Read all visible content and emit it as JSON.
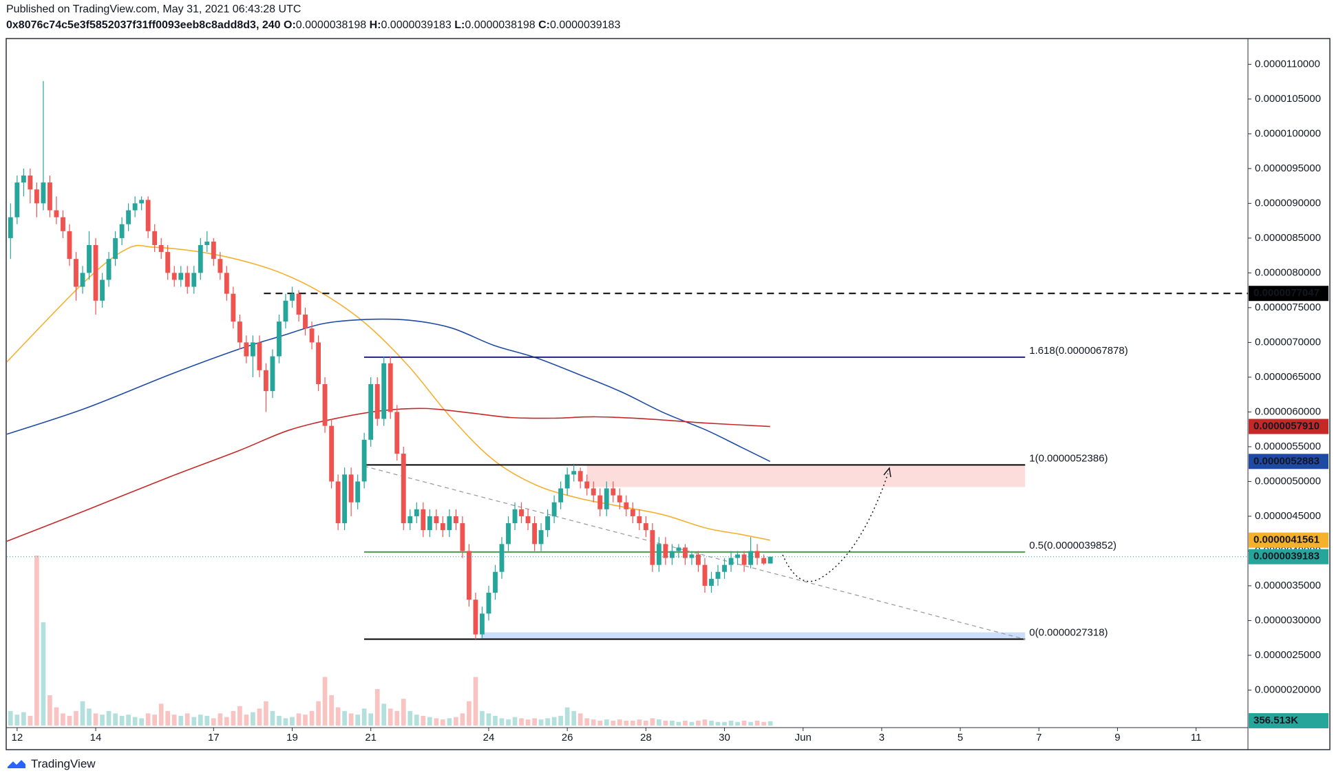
{
  "header": {
    "published": "Published on TradingView.com, May 31, 2021 06:43:28 UTC",
    "symbol": "0x8076c74c5e3f5852037f31ff0093eeb8c8add8d3, 240",
    "fields": [
      {
        "label": "O:",
        "value": "0.0000038198"
      },
      {
        "label": "H:",
        "value": "0.0000039183"
      },
      {
        "label": "L:",
        "value": "0.0000038198"
      },
      {
        "label": "C:",
        "value": "0.0000039183"
      }
    ]
  },
  "footer": {
    "brand": "TradingView"
  },
  "chart_data": {
    "type": "candlestick",
    "xlim": [
      11.74,
      43.32
    ],
    "ylim": [
      1.46e-06,
      1.137e-05
    ],
    "xticks": [
      12,
      14,
      17,
      19,
      21,
      24,
      26,
      28,
      30,
      {
        "value": 32,
        "label": "Jun"
      },
      {
        "value": 34,
        "label": "3"
      },
      {
        "value": 36,
        "label": "5"
      },
      {
        "value": 38,
        "label": "7"
      },
      {
        "value": 40,
        "label": "9"
      },
      {
        "value": 42,
        "label": "11"
      }
    ],
    "yticks": [
      {
        "value": 2e-06,
        "label": "0.0000020000"
      },
      {
        "value": 2.5e-06,
        "label": "0.0000025000"
      },
      {
        "value": 3e-06,
        "label": "0.0000030000"
      },
      {
        "value": 3.5e-06,
        "label": "0.0000035000"
      },
      {
        "value": 4e-06,
        "label": "0.0000040000"
      },
      {
        "value": 4.5e-06,
        "label": "0.0000045000"
      },
      {
        "value": 5e-06,
        "label": "0.0000050000"
      },
      {
        "value": 5.5e-06,
        "label": "0.0000055000"
      },
      {
        "value": 6e-06,
        "label": "0.0000060000"
      },
      {
        "value": 6.5e-06,
        "label": "0.0000065000"
      },
      {
        "value": 7e-06,
        "label": "0.0000070000"
      },
      {
        "value": 7.5e-06,
        "label": "0.0000075000"
      },
      {
        "value": 8e-06,
        "label": "0.0000080000"
      },
      {
        "value": 8.5e-06,
        "label": "0.0000085000"
      },
      {
        "value": 9e-06,
        "label": "0.0000090000"
      },
      {
        "value": 9.5e-06,
        "label": "0.0000095000"
      },
      {
        "value": 1e-05,
        "label": "0.0000100000"
      },
      {
        "value": 1.05e-05,
        "label": "0.0000105000"
      },
      {
        "value": 1.1e-05,
        "label": "0.0000110000"
      }
    ],
    "candle_colors": {
      "up": "#26a69a",
      "down": "#ef5350"
    },
    "x": [
      11.833,
      12,
      12.167,
      12.333,
      12.5,
      12.667,
      12.833,
      13,
      13.167,
      13.333,
      13.5,
      13.667,
      13.833,
      14,
      14.167,
      14.333,
      14.5,
      14.667,
      14.833,
      15,
      15.167,
      15.333,
      15.5,
      15.667,
      15.833,
      16,
      16.167,
      16.333,
      16.5,
      16.667,
      16.833,
      17,
      17.167,
      17.333,
      17.5,
      17.667,
      17.833,
      18,
      18.167,
      18.333,
      18.5,
      18.667,
      18.833,
      19,
      19.167,
      19.333,
      19.5,
      19.667,
      19.833,
      20,
      20.167,
      20.333,
      20.5,
      20.667,
      20.833,
      21,
      21.167,
      21.333,
      21.5,
      21.667,
      21.833,
      22,
      22.167,
      22.333,
      22.5,
      22.667,
      22.833,
      23,
      23.167,
      23.333,
      23.5,
      23.667,
      23.833,
      24,
      24.167,
      24.333,
      24.5,
      24.667,
      24.833,
      25,
      25.167,
      25.333,
      25.5,
      25.667,
      25.833,
      26,
      26.167,
      26.333,
      26.5,
      26.667,
      26.833,
      27,
      27.167,
      27.333,
      27.5,
      27.667,
      27.833,
      28,
      28.167,
      28.333,
      28.5,
      28.667,
      28.833,
      29,
      29.167,
      29.333,
      29.5,
      29.667,
      29.833,
      30,
      30.167,
      30.333,
      30.5,
      30.667,
      30.833,
      31,
      31.167
    ],
    "ohlc": [
      [
        8.5e-06,
        9e-06,
        8.2e-06,
        8.8e-06
      ],
      [
        8.8e-06,
        9.4e-06,
        8.7e-06,
        9.3e-06
      ],
      [
        9.3e-06,
        9.5e-06,
        9.1e-06,
        9.4e-06
      ],
      [
        9.4e-06,
        9.5e-06,
        9e-06,
        9.2e-06
      ],
      [
        9.2e-06,
        9.3e-06,
        8.8e-06,
        9e-06
      ],
      [
        9e-06,
        1.076e-05,
        8.9e-06,
        9.3e-06
      ],
      [
        9.3e-06,
        9.4e-06,
        8.8e-06,
        8.9e-06
      ],
      [
        8.9e-06,
        9.1e-06,
        8.7e-06,
        8.8e-06
      ],
      [
        8.8e-06,
        8.9e-06,
        8.5e-06,
        8.6e-06
      ],
      [
        8.6e-06,
        8.7e-06,
        8.1e-06,
        8.2e-06
      ],
      [
        8.2e-06,
        8.3e-06,
        7.6e-06,
        7.8e-06
      ],
      [
        7.8e-06,
        8.1e-06,
        7.7e-06,
        8e-06
      ],
      [
        8e-06,
        8.6e-06,
        7.9e-06,
        8.4e-06
      ],
      [
        8.4e-06,
        8.5e-06,
        7.4e-06,
        7.6e-06
      ],
      [
        7.6e-06,
        8e-06,
        7.5e-06,
        7.9e-06
      ],
      [
        7.9e-06,
        8.3e-06,
        7.8e-06,
        8.2e-06
      ],
      [
        8.2e-06,
        8.6e-06,
        8.1e-06,
        8.5e-06
      ],
      [
        8.5e-06,
        8.8e-06,
        8.4e-06,
        8.7e-06
      ],
      [
        8.7e-06,
        9e-06,
        8.6e-06,
        8.9e-06
      ],
      [
        8.9e-06,
        9.1e-06,
        8.8e-06,
        9e-06
      ],
      [
        9e-06,
        9.1e-06,
        8.9e-06,
        9.05e-06
      ],
      [
        9.05e-06,
        9.1e-06,
        8.5e-06,
        8.6e-06
      ],
      [
        8.6e-06,
        8.7e-06,
        8.3e-06,
        8.4e-06
      ],
      [
        8.4e-06,
        8.5e-06,
        8.2e-06,
        8.3e-06
      ],
      [
        8.3e-06,
        8.4e-06,
        7.9e-06,
        8e-06
      ],
      [
        8e-06,
        8.1e-06,
        7.8e-06,
        7.9e-06
      ],
      [
        7.9e-06,
        8.1e-06,
        7.8e-06,
        8e-06
      ],
      [
        8e-06,
        8.1e-06,
        7.7e-06,
        7.8e-06
      ],
      [
        7.8e-06,
        8.1e-06,
        7.7e-06,
        8e-06
      ],
      [
        8e-06,
        8.5e-06,
        7.9e-06,
        8.4e-06
      ],
      [
        8.4e-06,
        8.6e-06,
        8.3e-06,
        8.45e-06
      ],
      [
        8.45e-06,
        8.5e-06,
        8.1e-06,
        8.2e-06
      ],
      [
        8.2e-06,
        8.3e-06,
        7.9e-06,
        8e-06
      ],
      [
        8e-06,
        8.1e-06,
        7.6e-06,
        7.7e-06
      ],
      [
        7.7e-06,
        7.8e-06,
        7.2e-06,
        7.3e-06
      ],
      [
        7.3e-06,
        7.4e-06,
        6.9e-06,
        7e-06
      ],
      [
        7e-06,
        7.1e-06,
        6.7e-06,
        6.8e-06
      ],
      [
        6.8e-06,
        7.1e-06,
        6.5e-06,
        7e-06
      ],
      [
        7e-06,
        7.1e-06,
        6.5e-06,
        6.6e-06
      ],
      [
        6.6e-06,
        6.7e-06,
        6e-06,
        6.3e-06
      ],
      [
        6.3e-06,
        6.9e-06,
        6.2e-06,
        6.8e-06
      ],
      [
        6.8e-06,
        7.4e-06,
        6.7e-06,
        7.3e-06
      ],
      [
        7.3e-06,
        7.7e-06,
        7.2e-06,
        7.6e-06
      ],
      [
        7.6e-06,
        7.8e-06,
        7.5e-06,
        7.7e-06
      ],
      [
        7.7e-06,
        7.75e-06,
        7.3e-06,
        7.4e-06
      ],
      [
        7.4e-06,
        7.5e-06,
        7.1e-06,
        7.2e-06
      ],
      [
        7.2e-06,
        7.3e-06,
        6.9e-06,
        7e-06
      ],
      [
        7e-06,
        7.1e-06,
        6.3e-06,
        6.4e-06
      ],
      [
        6.4e-06,
        6.5e-06,
        5.7e-06,
        5.8e-06
      ],
      [
        5.8e-06,
        5.9e-06,
        4.9e-06,
        5e-06
      ],
      [
        5e-06,
        5.1e-06,
        4.3e-06,
        4.4e-06
      ],
      [
        4.4e-06,
        5.2e-06,
        4.3e-06,
        5.1e-06
      ],
      [
        5.1e-06,
        5.2e-06,
        4.5e-06,
        4.7e-06
      ],
      [
        4.7e-06,
        5.1e-06,
        4.6e-06,
        5e-06
      ],
      [
        5e-06,
        5.7e-06,
        4.9e-06,
        5.6e-06
      ],
      [
        5.6e-06,
        6.5e-06,
        5.5e-06,
        6.4e-06
      ],
      [
        6.4e-06,
        6.5e-06,
        5.8e-06,
        5.9e-06
      ],
      [
        5.9e-06,
        6.8e-06,
        5.8e-06,
        6.7e-06
      ],
      [
        6.7e-06,
        6.8e-06,
        5.9e-06,
        6e-06
      ],
      [
        6e-06,
        6.1e-06,
        5.3e-06,
        5.4e-06
      ],
      [
        5.4e-06,
        5.5e-06,
        4.3e-06,
        4.4e-06
      ],
      [
        4.4e-06,
        4.6e-06,
        4.3e-06,
        4.5e-06
      ],
      [
        4.5e-06,
        4.7e-06,
        4.4e-06,
        4.6e-06
      ],
      [
        4.6e-06,
        4.7e-06,
        4.2e-06,
        4.3e-06
      ],
      [
        4.3e-06,
        4.6e-06,
        4.2e-06,
        4.5e-06
      ],
      [
        4.5e-06,
        4.6e-06,
        4.3e-06,
        4.4e-06
      ],
      [
        4.4e-06,
        4.5e-06,
        4.2e-06,
        4.3e-06
      ],
      [
        4.3e-06,
        4.6e-06,
        4.2e-06,
        4.5e-06
      ],
      [
        4.5e-06,
        4.6e-06,
        4.3e-06,
        4.4e-06
      ],
      [
        4.4e-06,
        4.5e-06,
        3.9e-06,
        4e-06
      ],
      [
        4e-06,
        4.1e-06,
        3.2e-06,
        3.3e-06
      ],
      [
        3.3e-06,
        3.4e-06,
        2.73e-06,
        2.8e-06
      ],
      [
        2.8e-06,
        3.2e-06,
        2.75e-06,
        3.1e-06
      ],
      [
        3.1e-06,
        3.5e-06,
        3e-06,
        3.4e-06
      ],
      [
        3.4e-06,
        3.8e-06,
        3.3e-06,
        3.7e-06
      ],
      [
        3.7e-06,
        4.2e-06,
        3.6e-06,
        4.1e-06
      ],
      [
        4.1e-06,
        4.5e-06,
        4e-06,
        4.4e-06
      ],
      [
        4.4e-06,
        4.7e-06,
        4.3e-06,
        4.6e-06
      ],
      [
        4.6e-06,
        4.7e-06,
        4.4e-06,
        4.5e-06
      ],
      [
        4.5e-06,
        4.6e-06,
        4.3e-06,
        4.4e-06
      ],
      [
        4.4e-06,
        4.5e-06,
        4e-06,
        4.1e-06
      ],
      [
        4.1e-06,
        4.4e-06,
        4e-06,
        4.3e-06
      ],
      [
        4.3e-06,
        4.6e-06,
        4.2e-06,
        4.5e-06
      ],
      [
        4.5e-06,
        4.8e-06,
        4.4e-06,
        4.7e-06
      ],
      [
        4.7e-06,
        5e-06,
        4.6e-06,
        4.9e-06
      ],
      [
        4.9e-06,
        5.2e-06,
        4.8e-06,
        5.1e-06
      ],
      [
        5.1e-06,
        5.24e-06,
        5e-06,
        5.15e-06
      ],
      [
        5.15e-06,
        5.2e-06,
        4.9e-06,
        5e-06
      ],
      [
        5e-06,
        5.1e-06,
        4.8e-06,
        4.9e-06
      ],
      [
        4.9e-06,
        5e-06,
        4.7e-06,
        4.8e-06
      ],
      [
        4.8e-06,
        4.9e-06,
        4.5e-06,
        4.6e-06
      ],
      [
        4.6e-06,
        5e-06,
        4.5e-06,
        4.9e-06
      ],
      [
        4.9e-06,
        5e-06,
        4.7e-06,
        4.8e-06
      ],
      [
        4.8e-06,
        4.9e-06,
        4.6e-06,
        4.7e-06
      ],
      [
        4.7e-06,
        4.8e-06,
        4.5e-06,
        4.6e-06
      ],
      [
        4.6e-06,
        4.7e-06,
        4.4e-06,
        4.5e-06
      ],
      [
        4.5e-06,
        4.6e-06,
        4.3e-06,
        4.4e-06
      ],
      [
        4.4e-06,
        4.5e-06,
        4.2e-06,
        4.3e-06
      ],
      [
        4.3e-06,
        4.4e-06,
        3.7e-06,
        3.8e-06
      ],
      [
        3.8e-06,
        4.2e-06,
        3.7e-06,
        4.1e-06
      ],
      [
        4.1e-06,
        4.2e-06,
        3.8e-06,
        3.9e-06
      ],
      [
        3.9e-06,
        4.1e-06,
        3.8e-06,
        4e-06
      ],
      [
        4e-06,
        4.1e-06,
        3.9e-06,
        4.05e-06
      ],
      [
        4.05e-06,
        4.1e-06,
        3.8e-06,
        3.9e-06
      ],
      [
        3.9e-06,
        4e-06,
        3.8e-06,
        3.95e-06
      ],
      [
        3.95e-06,
        4e-06,
        3.7e-06,
        3.8e-06
      ],
      [
        3.8e-06,
        3.9e-06,
        3.4e-06,
        3.5e-06
      ],
      [
        3.5e-06,
        3.7e-06,
        3.4e-06,
        3.6e-06
      ],
      [
        3.6e-06,
        3.8e-06,
        3.5e-06,
        3.7e-06
      ],
      [
        3.7e-06,
        3.9e-06,
        3.6e-06,
        3.8e-06
      ],
      [
        3.8e-06,
        4e-06,
        3.7e-06,
        3.9e-06
      ],
      [
        3.9e-06,
        4e-06,
        3.8e-06,
        3.95e-06
      ],
      [
        3.95e-06,
        4e-06,
        3.7e-06,
        3.8e-06
      ],
      [
        3.8e-06,
        4.2e-06,
        3.75e-06,
        4e-06
      ],
      [
        4e-06,
        4.1e-06,
        3.8e-06,
        3.9e-06
      ],
      [
        3.9e-06,
        3.95e-06,
        3.8e-06,
        3.8198e-06
      ],
      [
        3.8198e-06,
        3.9183e-06,
        3.8198e-06,
        3.9183e-06
      ]
    ],
    "volume": [
      1200000.0,
      900000.0,
      1100000.0,
      800000.0,
      14000000.0,
      8500000.0,
      2500000.0,
      1500000.0,
      1000000.0,
      800000.0,
      1200000.0,
      2000000.0,
      1400000.0,
      1000000.0,
      900000.0,
      1200000.0,
      1000000.0,
      800000.0,
      900000.0,
      700000.0,
      600000.0,
      1000000.0,
      900000.0,
      1800000.0,
      1200000.0,
      900000.0,
      800000.0,
      1000000.0,
      700000.0,
      900000.0,
      800000.0,
      600000.0,
      1000000.0,
      700000.0,
      1200000.0,
      1600000.0,
      900000.0,
      1100000.0,
      1400000.0,
      2000000.0,
      1200000.0,
      800000.0,
      600000.0,
      700000.0,
      1000000.0,
      900000.0,
      1200000.0,
      2000000.0,
      4000000.0,
      2500000.0,
      1500000.0,
      1200000.0,
      1000000.0,
      900000.0,
      1400000.0,
      1000000.0,
      3000000.0,
      1800000.0,
      1400000.0,
      1200000.0,
      2200000.0,
      1200000.0,
      900000.0,
      800000.0,
      700000.0,
      600000.0,
      500000.0,
      600000.0,
      700000.0,
      1000000.0,
      2000000.0,
      4000000.0,
      1200000.0,
      1000000.0,
      800000.0,
      600000.0,
      500000.0,
      700000.0,
      600000.0,
      500000.0,
      600000.0,
      500000.0,
      600000.0,
      700000.0,
      800000.0,
      1500000.0,
      1200000.0,
      1000000.0,
      600000.0,
      500000.0,
      400000.0,
      500000.0,
      400000.0,
      500000.0,
      400000.0,
      400000.0,
      500000.0,
      400000.0,
      600000.0,
      500000.0,
      400000.0,
      400000.0,
      300000.0,
      400000.0,
      300000.0,
      400000.0,
      500000.0,
      400000.0,
      300000.0,
      300000.0,
      400000.0,
      300000.0,
      400000.0,
      300000.0,
      400000.0,
      300000.0,
      356513
    ],
    "volume_label": "356.513K",
    "moving_averages": [
      {
        "color": "#f5b02e",
        "x": [
          11.74,
          13.73,
          14.81,
          15.46,
          16.55,
          17.63,
          18.71,
          19.79,
          20.87,
          21.96,
          23.04,
          24.12,
          25.2,
          26.29,
          27.37,
          28.45,
          29.53,
          30.4,
          31.16
        ],
        "values": [
          6.72e-06,
          7.88e-06,
          8.35e-06,
          8.37e-06,
          8.31e-06,
          8.19e-06,
          8e-06,
          7.7e-06,
          7.27e-06,
          6.66e-06,
          5.92e-06,
          5.31e-06,
          4.95e-06,
          4.76e-06,
          4.64e-06,
          4.52e-06,
          4.33e-06,
          4.24e-06,
          4.1561e-06
        ],
        "last_label": "0.0000041561",
        "tag_text": "#131722"
      },
      {
        "color": "#1e4aa3",
        "x": [
          11.74,
          13.73,
          15.9,
          17.63,
          18.71,
          19.79,
          20.87,
          21.96,
          23.04,
          24.12,
          25.2,
          26.29,
          27.37,
          28.45,
          29.53,
          30.4,
          31.16
        ],
        "values": [
          5.68e-06,
          6.05e-06,
          6.54e-06,
          6.9e-06,
          7.09e-06,
          7.27e-06,
          7.33e-06,
          7.32e-06,
          7.21e-06,
          6.96e-06,
          6.78e-06,
          6.54e-06,
          6.29e-06,
          5.99e-06,
          5.74e-06,
          5.5e-06,
          5.2883e-06
        ],
        "last_label": "0.0000052883",
        "tag_text": "#ffffff"
      },
      {
        "color": "#c62828",
        "x": [
          11.74,
          13.73,
          15.9,
          17.63,
          18.93,
          20.23,
          21.31,
          22.39,
          23.47,
          24.55,
          25.64,
          26.72,
          28.02,
          29.53,
          31.16
        ],
        "values": [
          4.14e-06,
          4.58e-06,
          5.07e-06,
          5.44e-06,
          5.74e-06,
          5.92e-06,
          6.02e-06,
          6.05e-06,
          5.99e-06,
          5.92e-06,
          5.91e-06,
          5.93e-06,
          5.9e-06,
          5.84e-06,
          5.791e-06
        ],
        "last_label": "0.0000057910",
        "tag_text": "#ffffff"
      }
    ],
    "fib": {
      "x": [
        20.83,
        37.65
      ],
      "levels": [
        {
          "label": "1.618(0.0000067878)",
          "value": 6.7878e-06,
          "color": "#1a237e",
          "text_color": "#3949ab"
        },
        {
          "label": "1(0.0000052386)",
          "value": 5.2386e-06,
          "color": "#000000",
          "text_color": "#131722"
        },
        {
          "label": "0.5(0.0000039852)",
          "value": 3.9852e-06,
          "color": "#43a047",
          "text_color": "#43a047"
        },
        {
          "label": "0(0.0000027318)",
          "value": 2.7318e-06,
          "color": "#000000",
          "text_color": "#131722"
        }
      ]
    },
    "resistance_line": {
      "x": [
        18.28,
        43.32
      ],
      "value": 7.7047e-06,
      "label": "0.0000077047",
      "color": "#000000"
    },
    "last_price_label": "0.0000039183",
    "zones": [
      {
        "color": "rgba(239,83,80,0.2)",
        "x": [
          26.5,
          37.65
        ],
        "y": [
          4.92e-06,
          5.2386e-06
        ]
      },
      {
        "color": "rgba(66,133,244,0.28)",
        "x": [
          23.8,
          37.65
        ],
        "y": [
          2.73e-06,
          2.83e-06
        ]
      }
    ],
    "trend_line": {
      "x": [
        20.83,
        37.65
      ],
      "values": [
        5.22e-06,
        2.73e-06
      ],
      "color": "#9e9e9e"
    }
  }
}
